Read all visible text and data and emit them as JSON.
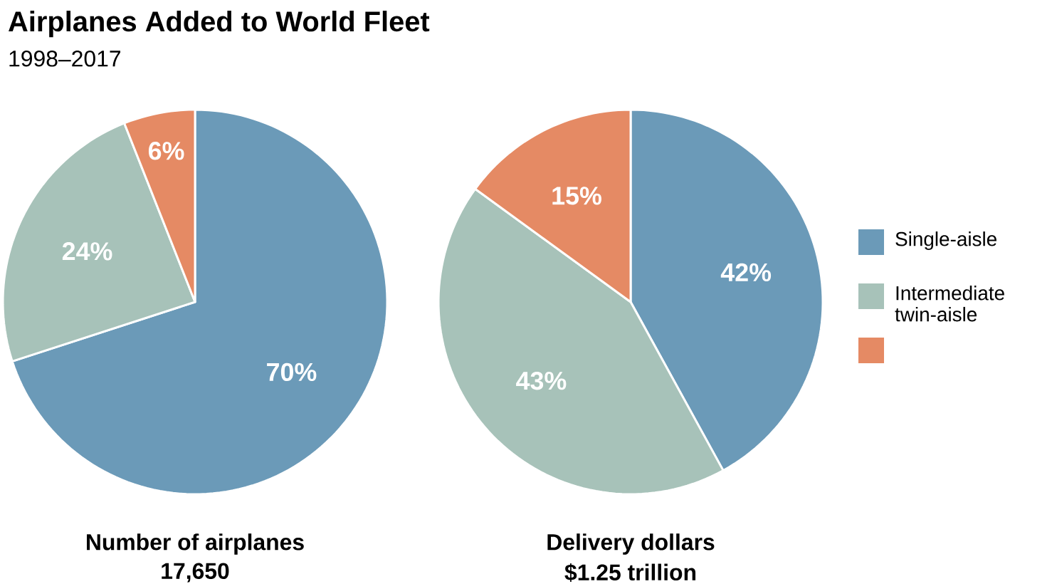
{
  "chart_data": [
    {
      "type": "pie",
      "title": "Airplanes Added to World Fleet",
      "subtitle": "1998–2017",
      "xlabel": "Number of airplanes",
      "annotations": [
        "17,650"
      ],
      "categories": [
        null,
        null,
        null
      ],
      "values": [
        70,
        24,
        6
      ],
      "colors": [
        "#6b9ab8",
        "#a7c2b9",
        "#e58a64"
      ],
      "value_labels": [
        "70%",
        "24%",
        "6%"
      ]
    },
    {
      "type": "pie",
      "xlabel": "Delivery dollars",
      "annotations": [
        "$1.25 trillion"
      ],
      "categories": [
        "Single-aisle",
        "Intermediate twin-aisle",
        null
      ],
      "values": [
        42,
        43,
        15
      ],
      "colors": [
        "#6b9ab8",
        "#a7c2b9",
        "#e58a64"
      ],
      "value_labels": [
        "42%",
        "43%",
        "15%"
      ],
      "legend": "right"
    }
  ]
}
